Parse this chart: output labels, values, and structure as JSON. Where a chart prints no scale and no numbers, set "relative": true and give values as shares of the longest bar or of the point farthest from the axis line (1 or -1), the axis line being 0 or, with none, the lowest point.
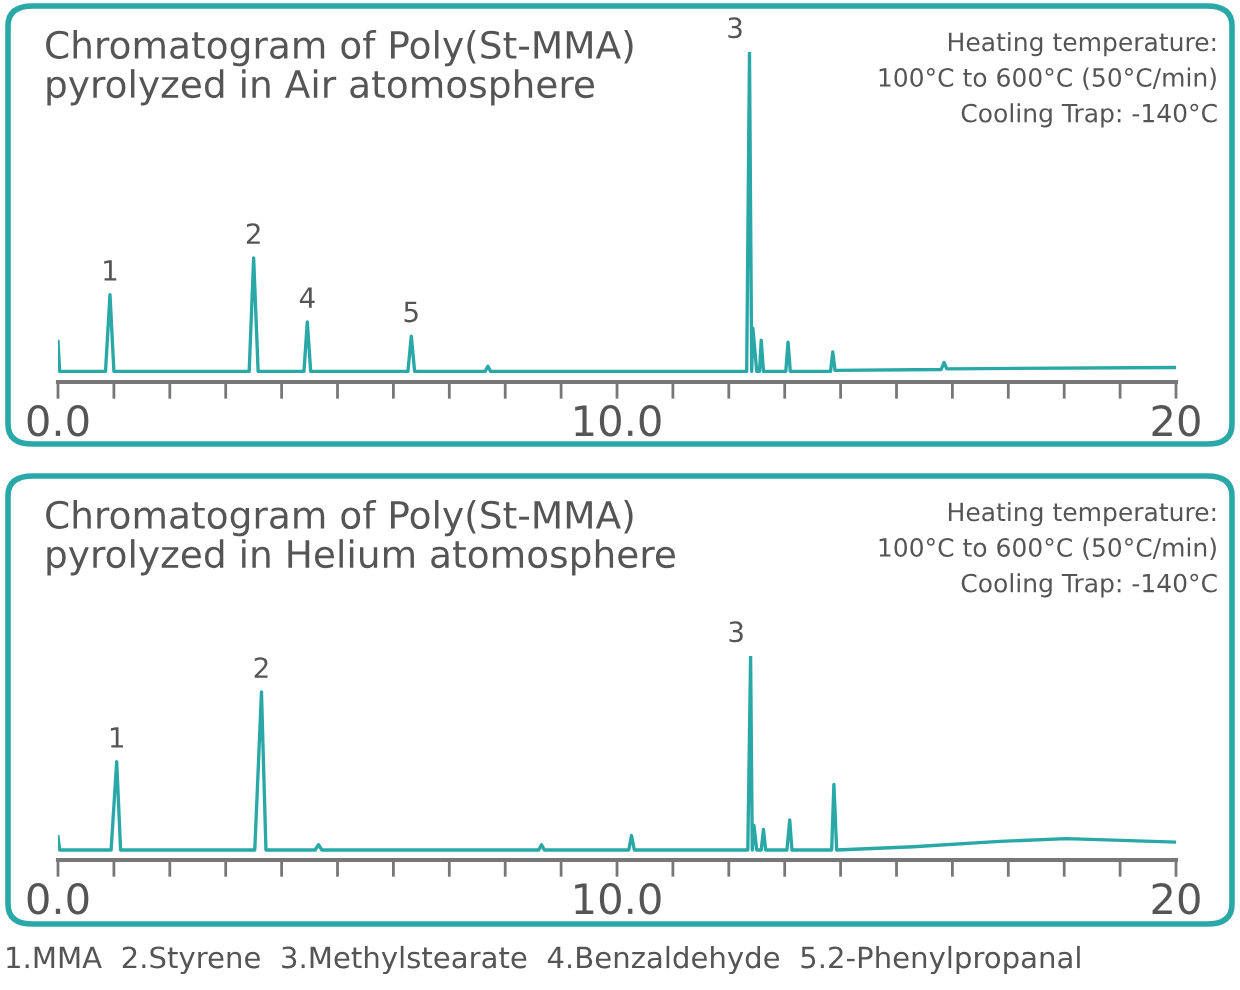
{
  "chart_data": [
    {
      "type": "line",
      "relative": true,
      "title": "Chromatogram of Poly(St-MMA)\npyrolyzed in Air atomosphere",
      "annotations": [
        "Heating temperature:\n100°C to 600°C (50°C/min)\nCooling Trap: -140°C",
        {
          "text": "1",
          "x": 0.93,
          "y": 0.265
        },
        {
          "text": "2",
          "x": 3.5,
          "y": 0.376
        },
        {
          "text": "3",
          "x": 12.37,
          "y": 1.0
        },
        {
          "text": "4",
          "x": 4.46,
          "y": 0.182
        },
        {
          "text": "5",
          "x": 6.32,
          "y": 0.139
        }
      ],
      "xlim": [
        0,
        20
      ],
      "xticks": [
        {
          "value": 0,
          "label": "0.0"
        },
        {
          "value": 1,
          "label": null
        },
        {
          "value": 2,
          "label": null
        },
        {
          "value": 3,
          "label": null
        },
        {
          "value": 4,
          "label": null
        },
        {
          "value": 5,
          "label": null
        },
        {
          "value": 6,
          "label": null
        },
        {
          "value": 7,
          "label": null
        },
        {
          "value": 8,
          "label": null
        },
        {
          "value": 9,
          "label": null
        },
        {
          "value": 10,
          "label": "10.0"
        },
        {
          "value": 11,
          "label": null
        },
        {
          "value": 12,
          "label": null
        },
        {
          "value": 13,
          "label": null
        },
        {
          "value": 14,
          "label": null
        },
        {
          "value": 15,
          "label": null
        },
        {
          "value": 16,
          "label": null
        },
        {
          "value": 17,
          "label": null
        },
        {
          "value": 18,
          "label": null
        },
        {
          "value": 19,
          "label": null
        },
        20
      ],
      "tick_labels": "x",
      "grid": false,
      "legend": false,
      "series": [
        {
          "color": "#2aa8a8",
          "x": [
            0,
            0.03,
            0.1,
            0.85,
            0.93,
            1.0,
            3.42,
            3.5,
            3.58,
            4.4,
            4.46,
            4.52,
            6.26,
            6.32,
            6.38,
            7.64,
            7.69,
            7.74,
            12.32,
            12.37,
            12.41,
            12.43,
            12.5,
            12.55,
            12.58,
            12.62,
            13.02,
            13.06,
            13.1,
            13.82,
            13.86,
            13.9,
            15.8,
            15.85,
            15.9,
            19.97
          ],
          "values": [
            0.123,
            0.032,
            0.032,
            0.032,
            0.265,
            0.032,
            0.032,
            0.376,
            0.032,
            0.032,
            0.182,
            0.032,
            0.032,
            0.139,
            0.032,
            0.032,
            0.048,
            0.032,
            0.032,
            1.0,
            0.032,
            0.164,
            0.032,
            0.032,
            0.127,
            0.032,
            0.032,
            0.121,
            0.032,
            0.032,
            0.091,
            0.035,
            0.038,
            0.059,
            0.04,
            0.044
          ]
        }
      ]
    },
    {
      "type": "line",
      "relative": true,
      "title": "Chromatogram of Poly(St-MMA)\npyrolyzed in Helium atomosphere",
      "annotations": [
        "Heating temperature:\n100°C to 600°C (50°C/min)\nCooling Trap: -140°C",
        {
          "text": "1",
          "x": 1.05,
          "y": 0.482
        },
        {
          "text": "2",
          "x": 3.64,
          "y": 0.824
        },
        {
          "text": "3",
          "x": 12.39,
          "y": 1.0
        },
        "1.MMA  2.Styrene  3.Methylstearate  4.Benzaldehyde  5.2-Phenylpropanal"
      ],
      "xlim": [
        0,
        20
      ],
      "xticks": [
        {
          "value": 0,
          "label": "0.0"
        },
        {
          "value": 1,
          "label": null
        },
        {
          "value": 2,
          "label": null
        },
        {
          "value": 3,
          "label": null
        },
        {
          "value": 4,
          "label": null
        },
        {
          "value": 5,
          "label": null
        },
        {
          "value": 6,
          "label": null
        },
        {
          "value": 7,
          "label": null
        },
        {
          "value": 8,
          "label": null
        },
        {
          "value": 9,
          "label": null
        },
        {
          "value": 10,
          "label": "10.0"
        },
        {
          "value": 11,
          "label": null
        },
        {
          "value": 12,
          "label": null
        },
        {
          "value": 13,
          "label": null
        },
        {
          "value": 14,
          "label": null
        },
        {
          "value": 15,
          "label": null
        },
        {
          "value": 16,
          "label": null
        },
        {
          "value": 17,
          "label": null
        },
        {
          "value": 18,
          "label": null
        },
        {
          "value": 19,
          "label": null
        },
        20
      ],
      "tick_labels": "x",
      "grid": false,
      "legend": false,
      "series": [
        {
          "color": "#2aa8a8",
          "x": [
            0,
            0.03,
            0.1,
            0.95,
            1.05,
            1.12,
            3.52,
            3.64,
            3.72,
            4.6,
            4.66,
            4.72,
            8.6,
            8.65,
            8.7,
            10.21,
            10.26,
            10.31,
            12.34,
            12.39,
            12.42,
            12.45,
            12.5,
            12.58,
            12.62,
            12.66,
            13.04,
            13.09,
            13.13,
            13.84,
            13.88,
            13.93,
            15.3,
            16.85,
            18.04,
            19.97
          ],
          "values": [
            0.114,
            0.049,
            0.049,
            0.049,
            0.482,
            0.049,
            0.049,
            0.824,
            0.049,
            0.049,
            0.075,
            0.049,
            0.049,
            0.075,
            0.049,
            0.049,
            0.12,
            0.049,
            0.049,
            1.0,
            0.049,
            0.169,
            0.049,
            0.049,
            0.15,
            0.049,
            0.049,
            0.196,
            0.049,
            0.049,
            0.371,
            0.049,
            0.065,
            0.091,
            0.105,
            0.088
          ]
        }
      ]
    }
  ]
}
